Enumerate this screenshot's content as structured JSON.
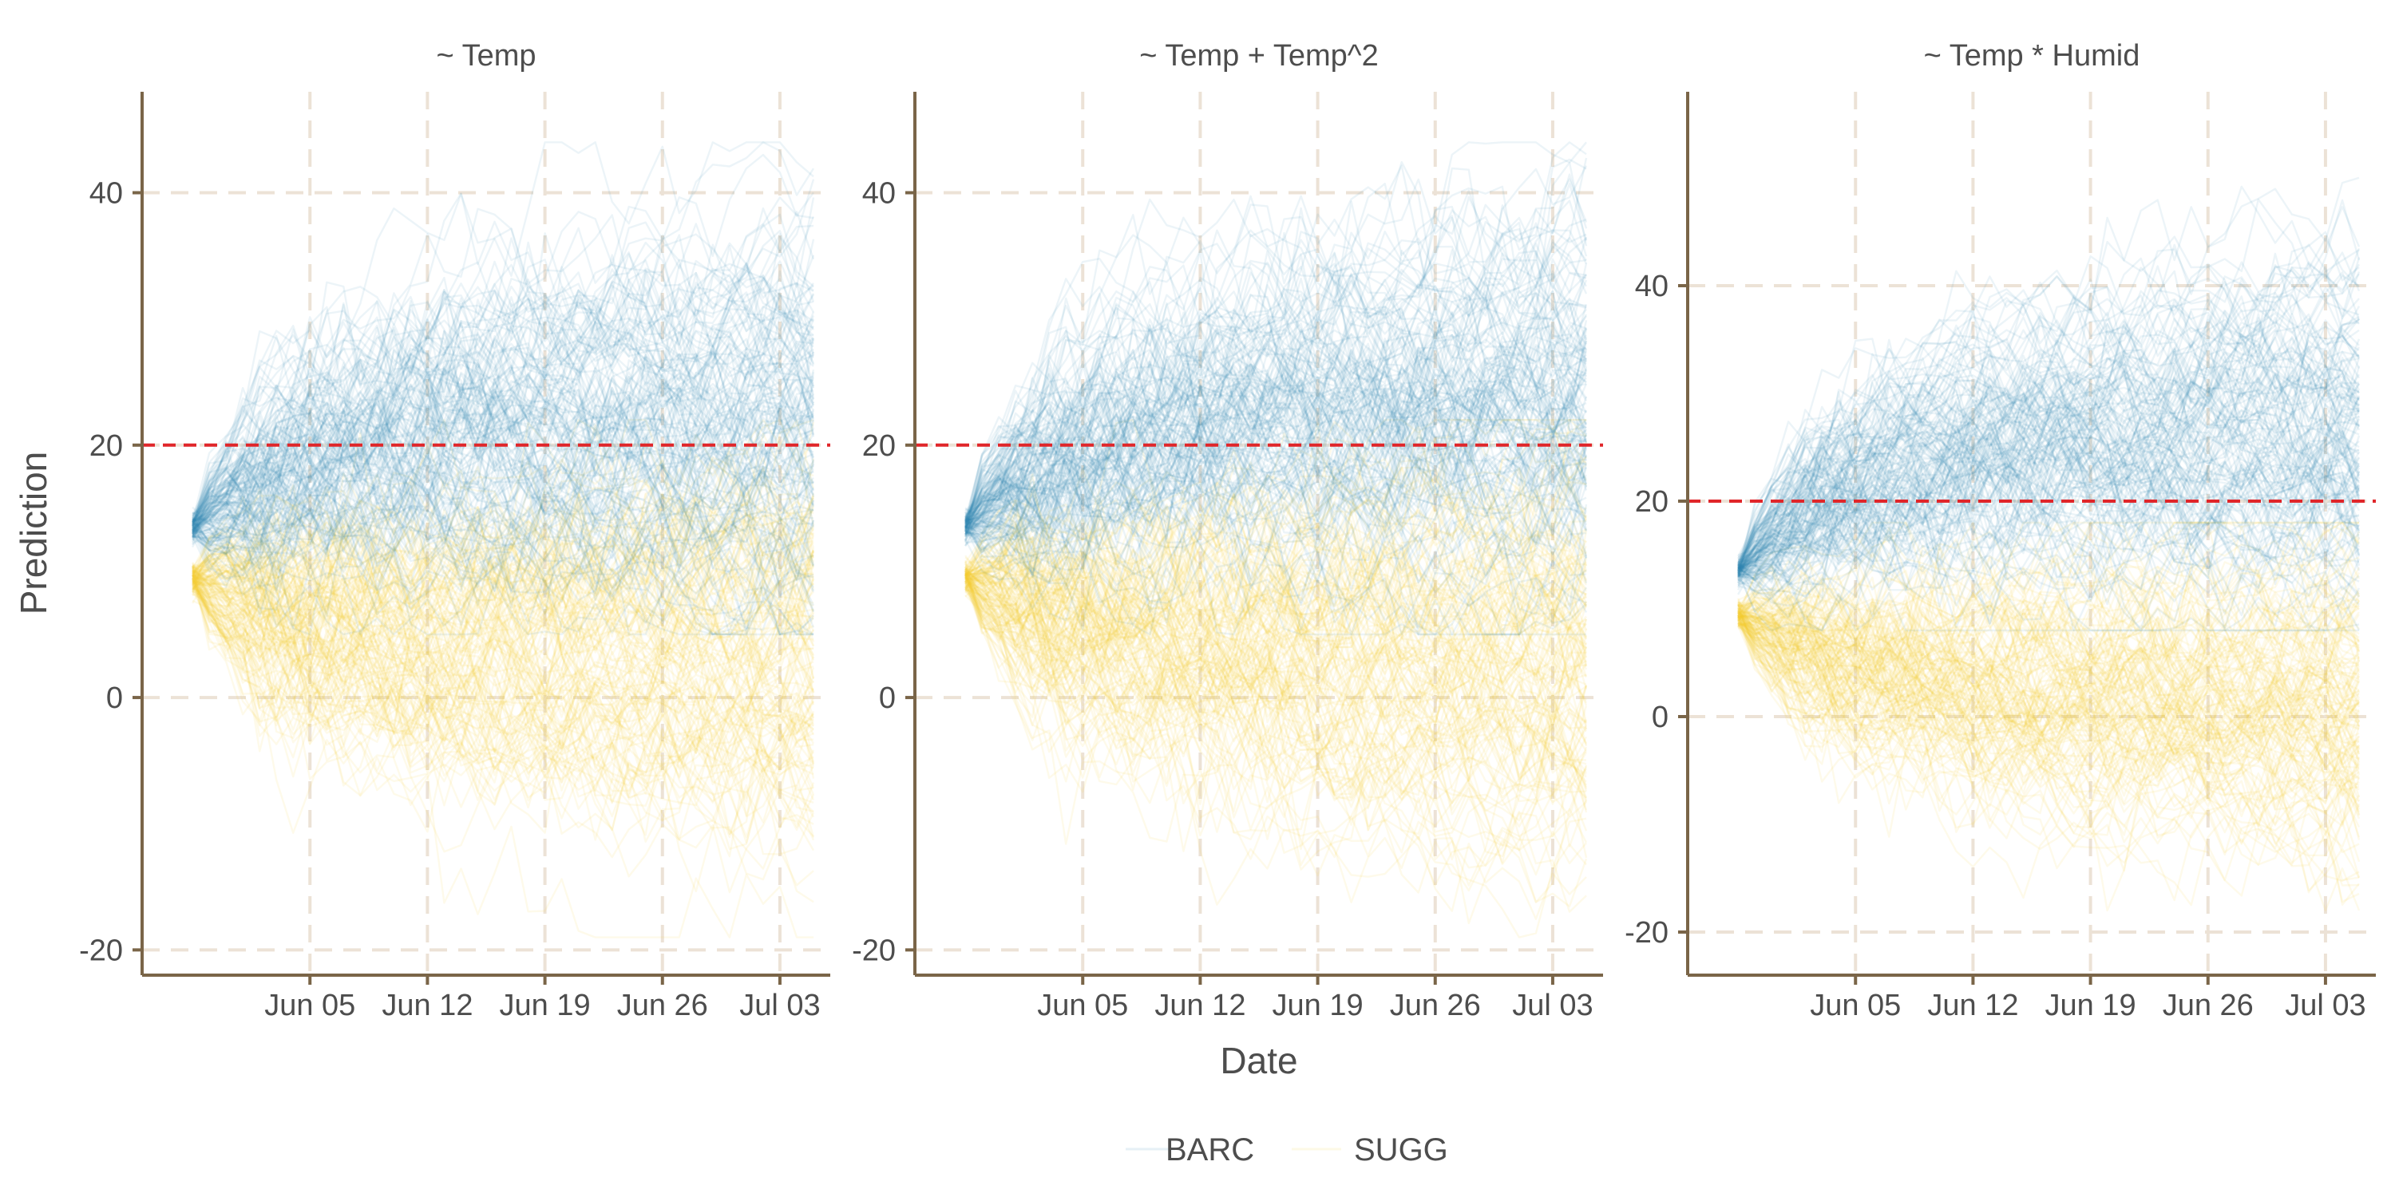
{
  "chart_data": {
    "type": "line",
    "x_axis_type": "date",
    "xlabel": "Date",
    "ylabel": "Prediction",
    "xlim": [
      "2024-05-26",
      "2024-07-06"
    ],
    "x_ticks": [
      "2024-06-05",
      "2024-06-12",
      "2024-06-19",
      "2024-06-26",
      "2024-07-03"
    ],
    "x_tick_labels": [
      "Jun 05",
      "Jun 12",
      "Jun 19",
      "Jun 26",
      "Jul 03"
    ],
    "grid": true,
    "legend_position": "bottom",
    "colors": {
      "BARC": "#2e86b5",
      "SUGG": "#f2cd2e",
      "threshold": "#e0262a",
      "axis": "#7a6548",
      "grid": "#ece2d6"
    },
    "series": [
      {
        "name": "BARC",
        "description_values": "ensemble of forecast trajectories"
      },
      {
        "name": "SUGG",
        "description_values": "ensemble of forecast trajectories"
      }
    ],
    "facets": [
      {
        "title": "~ Temp",
        "ylim": [
          -22,
          48
        ],
        "y_ticks": [
          -20,
          0,
          20,
          40
        ],
        "threshold": 20,
        "start_date": "2024-05-29",
        "end_date": "2024-07-05",
        "BARC": {
          "start": 13.5,
          "mean_end": 22,
          "spread_start": 0.5,
          "spread_end": 8,
          "min": 5,
          "max": 44
        },
        "SUGG": {
          "start": 9.5,
          "mean_end": 3,
          "spread_start": 0.5,
          "spread_end": 8,
          "min": -19,
          "max": 22
        }
      },
      {
        "title": "~ Temp + Temp^2",
        "ylim": [
          -22,
          48
        ],
        "y_ticks": [
          -20,
          0,
          20,
          40
        ],
        "threshold": 20,
        "start_date": "2024-05-29",
        "end_date": "2024-07-05",
        "BARC": {
          "start": 13.5,
          "mean_end": 22,
          "spread_start": 0.5,
          "spread_end": 8,
          "min": 5,
          "max": 44
        },
        "SUGG": {
          "start": 9.5,
          "mean_end": 3,
          "spread_start": 0.5,
          "spread_end": 8,
          "min": -19,
          "max": 22
        }
      },
      {
        "title": "~ Temp * Humid",
        "ylim": [
          -24,
          58
        ],
        "y_ticks": [
          -20,
          0,
          20,
          40
        ],
        "threshold": 20,
        "start_date": "2024-05-29",
        "end_date": "2024-07-05",
        "BARC": {
          "start": 13.5,
          "mean_end": 27,
          "spread_start": 0.5,
          "spread_end": 9,
          "min": 8,
          "max": 52
        },
        "SUGG": {
          "start": 9.5,
          "mean_end": 2,
          "spread_start": 0.5,
          "spread_end": 7,
          "min": -18,
          "max": 18
        }
      }
    ],
    "legend": [
      "BARC",
      "SUGG"
    ]
  }
}
